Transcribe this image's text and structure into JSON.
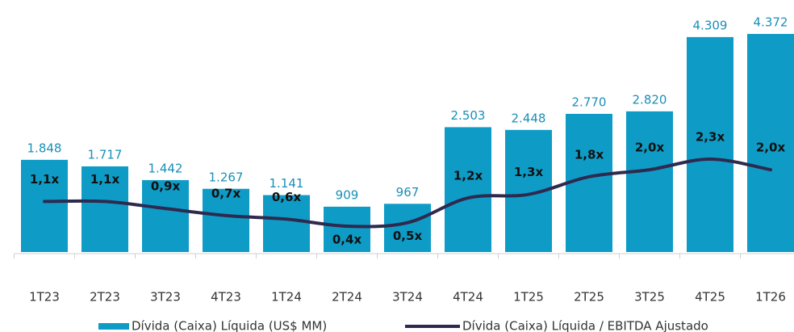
{
  "chart_data": {
    "type": "bar_line",
    "categories": [
      "1T23",
      "2T23",
      "3T23",
      "4T23",
      "1T24",
      "2T24",
      "3T24",
      "4T24",
      "1T25",
      "2T25",
      "3T25",
      "4T25",
      "1T26"
    ],
    "series": [
      {
        "name": "Dívida (Caixa) Líquida (US$ MM)",
        "type": "bar",
        "color": "#0e9cc7",
        "values": [
          1848,
          1717,
          1442,
          1267,
          1141,
          909,
          967,
          2503,
          2448,
          2770,
          2820,
          4309,
          4372
        ],
        "value_labels": [
          "1.848",
          "1.717",
          "1.442",
          "1.267",
          "1.141",
          "909",
          "967",
          "2.503",
          "2.448",
          "2.770",
          "2.820",
          "4.309",
          "4.372"
        ]
      },
      {
        "name": "Dívida (Caixa) Líquida / EBITDA Ajustado",
        "type": "line",
        "axis": "y2",
        "color": "#2e2a4f",
        "values": [
          1.1,
          1.1,
          0.9,
          0.7,
          0.6,
          0.4,
          0.5,
          1.2,
          1.3,
          1.8,
          2.0,
          2.3,
          2.0
        ],
        "value_labels": [
          "1,1x",
          "1,1x",
          "0,9x",
          "0,7x",
          "0,6x",
          "0,4x",
          "0,5x",
          "1,2x",
          "1,3x",
          "1,8x",
          "2,0x",
          "2,3x",
          "2,0x"
        ]
      }
    ]
  }
}
